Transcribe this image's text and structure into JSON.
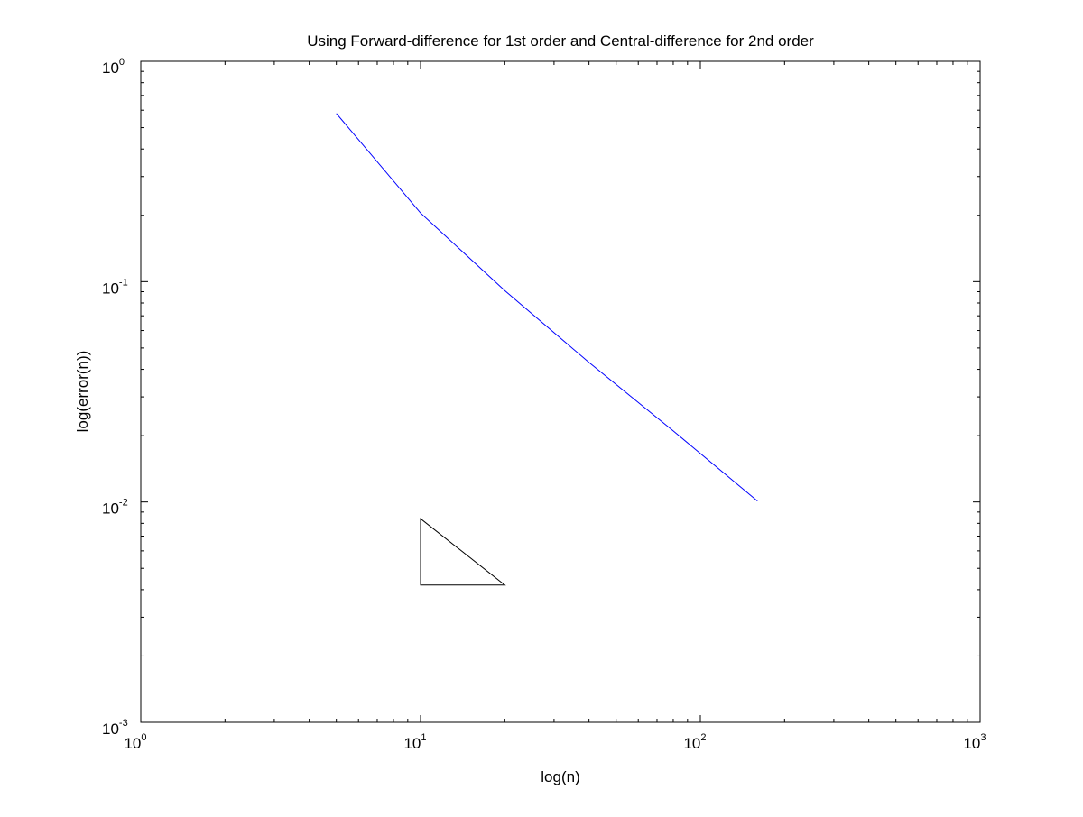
{
  "chart_data": {
    "type": "line",
    "title": "Using Forward-difference for 1st order and Central-difference for 2nd order",
    "xlabel": "log(n)",
    "ylabel": "log(error(n))",
    "x_scale": "log",
    "y_scale": "log",
    "xlim": [
      1,
      1000
    ],
    "ylim": [
      0.001,
      1
    ],
    "x_ticks": [
      {
        "value": 1,
        "base": "10",
        "exp": "0"
      },
      {
        "value": 10,
        "base": "10",
        "exp": "1"
      },
      {
        "value": 100,
        "base": "10",
        "exp": "2"
      },
      {
        "value": 1000,
        "base": "10",
        "exp": "3"
      }
    ],
    "y_ticks": [
      {
        "value": 0.001,
        "base": "10",
        "exp": "-3"
      },
      {
        "value": 0.01,
        "base": "10",
        "exp": "-2"
      },
      {
        "value": 0.1,
        "base": "10",
        "exp": "-1"
      },
      {
        "value": 1,
        "base": "10",
        "exp": "0"
      }
    ],
    "grid": false,
    "series": [
      {
        "color": "#0000ff",
        "x": [
          5,
          10,
          20,
          40,
          80,
          160
        ],
        "y": [
          0.58,
          0.205,
          0.091,
          0.043,
          0.021,
          0.0101
        ]
      }
    ],
    "annotations": [
      {
        "kind": "slope-triangle",
        "color": "#000000",
        "x": [
          10,
          10,
          20
        ],
        "y": [
          0.0084,
          0.0042,
          0.0042
        ]
      }
    ]
  }
}
